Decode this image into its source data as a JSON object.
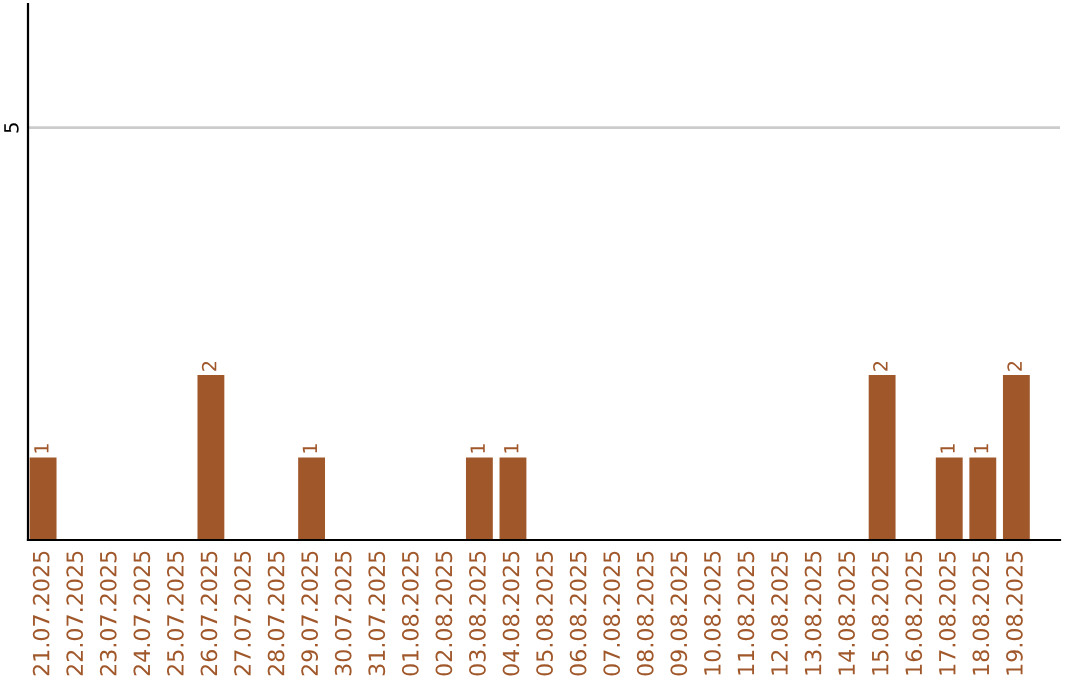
{
  "chart_data": {
    "type": "bar",
    "categories": [
      "21.07.2025",
      "22.07.2025",
      "23.07.2025",
      "24.07.2025",
      "25.07.2025",
      "26.07.2025",
      "27.07.2025",
      "28.07.2025",
      "29.07.2025",
      "30.07.2025",
      "31.07.2025",
      "01.08.2025",
      "02.08.2025",
      "03.08.2025",
      "04.08.2025",
      "05.08.2025",
      "06.08.2025",
      "07.08.2025",
      "08.08.2025",
      "09.08.2025",
      "10.08.2025",
      "11.08.2025",
      "12.08.2025",
      "13.08.2025",
      "14.08.2025",
      "15.08.2025",
      "16.08.2025",
      "17.08.2025",
      "18.08.2025",
      "19.08.2025"
    ],
    "values": [
      1,
      0,
      0,
      0,
      0,
      2,
      0,
      0,
      1,
      0,
      0,
      0,
      0,
      1,
      1,
      0,
      0,
      0,
      0,
      0,
      0,
      0,
      0,
      0,
      0,
      2,
      0,
      1,
      1,
      2
    ],
    "value_labels": [
      "1",
      null,
      null,
      null,
      null,
      "2",
      null,
      null,
      "1",
      null,
      null,
      null,
      null,
      "1",
      "1",
      null,
      null,
      null,
      null,
      null,
      null,
      null,
      null,
      null,
      null,
      "2",
      null,
      "1",
      "1",
      "2"
    ],
    "color": "#a0572a",
    "ylim": [
      0,
      6.5
    ],
    "yticks": [
      5
    ],
    "grid": "y"
  }
}
